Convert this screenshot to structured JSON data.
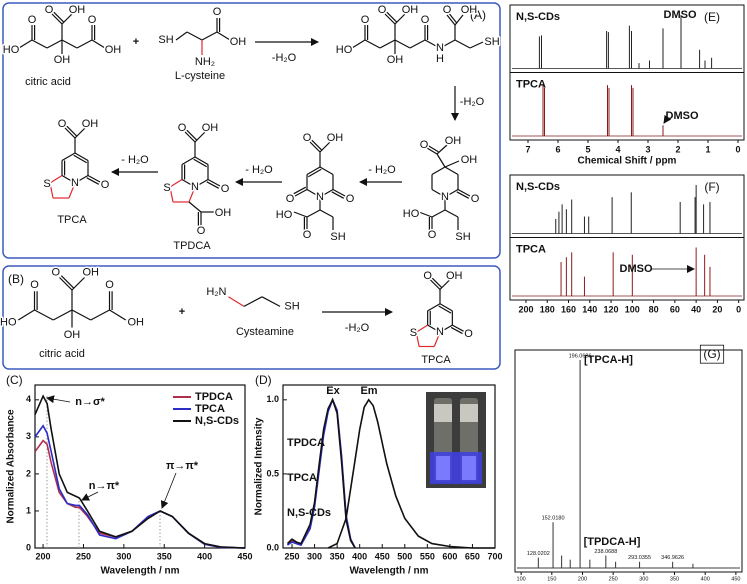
{
  "scheme_a": {
    "label": "(A)",
    "plus": "+",
    "names": [
      "citric acid",
      "L-cysteine",
      "TPDCA",
      "TPCA"
    ],
    "conditions": [
      "-H₂O",
      "-H₂O",
      "- H₂O",
      "- H₂O",
      "- H₂O"
    ],
    "molecules": [
      {
        "atoms": [
          "O",
          "OH",
          "O",
          "HO",
          "O",
          "OH",
          "OH"
        ]
      },
      {
        "atoms": [
          "SH",
          "NH₂",
          "O",
          "OH"
        ]
      },
      {
        "atoms": [
          "O",
          "OH",
          "O",
          "HO",
          "O",
          "OH",
          "N",
          "H",
          "O",
          "OH",
          "SH"
        ]
      },
      {
        "atoms": [
          "O",
          "OH",
          "OH",
          "O",
          "N",
          "HO",
          "O",
          "SH"
        ]
      },
      {
        "atoms": [
          "O",
          "OH",
          "O",
          "O",
          "N",
          "HO",
          "O",
          "SH"
        ]
      },
      {
        "atoms": [
          "O",
          "OH",
          "O",
          "N",
          "S",
          "O",
          "OH"
        ]
      },
      {
        "atoms": [
          "O",
          "OH",
          "O",
          "N",
          "S"
        ]
      }
    ]
  },
  "scheme_b": {
    "label": "(B)",
    "plus": "+",
    "names": [
      "citric acid",
      "Cysteamine",
      "TPCA"
    ],
    "conditions": [
      "-H₂O"
    ],
    "molecules": [
      {
        "atoms": [
          "O",
          "OH",
          "O",
          "HO",
          "O",
          "OH",
          "OH"
        ]
      },
      {
        "atoms": [
          "H₂N",
          "SH"
        ]
      },
      {
        "atoms": [
          "O",
          "OH",
          "O",
          "N",
          "S"
        ]
      }
    ]
  },
  "chart_data": [
    {
      "type": "line",
      "panel": "(C)",
      "xlabel": "Wavelength / nm",
      "ylabel": "Normalized Absorbance",
      "x": [
        190,
        200,
        205,
        210,
        220,
        230,
        240,
        245,
        255,
        270,
        290,
        310,
        330,
        345,
        360,
        380,
        400,
        420,
        450
      ],
      "xlim": [
        190,
        450
      ],
      "xticks": [
        200,
        250,
        300,
        350,
        400,
        450
      ],
      "ylim": [
        0,
        4.4
      ],
      "yticks": [
        0,
        1,
        2,
        3,
        4
      ],
      "legend": "upper right",
      "series": [
        {
          "name": "TPDCA",
          "color": "#b0304a",
          "values": [
            2.6,
            2.9,
            2.8,
            2.3,
            1.5,
            1.2,
            1.1,
            1.1,
            0.85,
            0.4,
            0.3,
            0.45,
            0.85,
            1.0,
            0.85,
            0.4,
            0.1,
            0.02,
            0
          ]
        },
        {
          "name": "TPCA",
          "color": "#2c2cc8",
          "values": [
            3.0,
            3.3,
            3.1,
            2.6,
            1.6,
            1.2,
            1.15,
            1.15,
            0.9,
            0.35,
            0.25,
            0.45,
            0.85,
            1.0,
            0.85,
            0.4,
            0.1,
            0.02,
            0
          ]
        },
        {
          "name": "N,S-CDs",
          "color": "#111111",
          "values": [
            3.6,
            4.1,
            3.9,
            3.2,
            2.0,
            1.5,
            1.4,
            1.35,
            1.0,
            0.45,
            0.3,
            0.45,
            0.8,
            1.0,
            0.85,
            0.4,
            0.12,
            0.03,
            0
          ]
        }
      ],
      "annotations": [
        "n→σ*",
        "n→π*",
        "π→π*"
      ]
    },
    {
      "type": "line",
      "panel": "(D)",
      "xlabel": "Wavelength / nm",
      "ylabel": "Normalized Intensity",
      "xlim": [
        230,
        700
      ],
      "xticks": [
        250,
        300,
        350,
        400,
        450,
        500,
        550,
        600,
        650,
        700
      ],
      "ylim": [
        0,
        1.1
      ],
      "yticks": [
        {
          "value": 0,
          "label": "0.0"
        },
        {
          "value": 0.5,
          "label": "0.5"
        },
        {
          "value": 1,
          "label": "1.0"
        }
      ],
      "legend": "left",
      "series": [
        {
          "name": "TPDCA",
          "color": "#b0304a",
          "x": [
            240,
            250,
            260,
            270,
            290,
            300,
            310,
            320,
            330,
            340,
            350,
            360,
            370,
            380,
            390
          ],
          "values": [
            0.02,
            0.05,
            0.03,
            0.02,
            0.15,
            0.3,
            0.55,
            0.78,
            0.93,
            1.0,
            0.92,
            0.6,
            0.2,
            0.05,
            0
          ]
        },
        {
          "name": "TPCA",
          "color": "#2c2cc8",
          "x": [
            240,
            250,
            260,
            270,
            290,
            300,
            310,
            320,
            330,
            340,
            350,
            360,
            370,
            380,
            390
          ],
          "values": [
            0.02,
            0.04,
            0.03,
            0.02,
            0.13,
            0.28,
            0.52,
            0.76,
            0.92,
            1.0,
            0.93,
            0.62,
            0.22,
            0.06,
            0
          ]
        },
        {
          "name": "N,S-CDs",
          "color": "#111111",
          "x": [
            240,
            250,
            260,
            270,
            290,
            300,
            310,
            320,
            330,
            340,
            350,
            360,
            370,
            380,
            390
          ],
          "values": [
            0.03,
            0.06,
            0.04,
            0.03,
            0.16,
            0.31,
            0.56,
            0.8,
            0.94,
            1.0,
            0.91,
            0.58,
            0.19,
            0.05,
            0
          ]
        },
        {
          "color": "#111111",
          "x": [
            330,
            350,
            370,
            390,
            400,
            410,
            420,
            430,
            440,
            460,
            480,
            500,
            530,
            560,
            600,
            650,
            700
          ],
          "values": [
            0,
            0.03,
            0.2,
            0.6,
            0.8,
            0.95,
            1.0,
            0.96,
            0.85,
            0.57,
            0.35,
            0.2,
            0.08,
            0.03,
            0.01,
            0,
            0
          ]
        }
      ],
      "annotations": [
        "Ex",
        "Em"
      ]
    },
    {
      "type": "stick",
      "panel": "(E)",
      "xlabel": "Chemical Shift / ppm",
      "stacked": true,
      "xlim": [
        7.6,
        -0.2
      ],
      "xticks": [
        7,
        6,
        5,
        4,
        3,
        2,
        1,
        0
      ],
      "series": [
        {
          "name": "N,S-CDs",
          "color": "#222222",
          "x": [
            6.62,
            6.55,
            4.38,
            4.32,
            3.62,
            3.55,
            2.5,
            1.9,
            1.28,
            1.1,
            0.88,
            3.3,
            2.95
          ],
          "values": [
            0.6,
            0.62,
            0.7,
            0.68,
            0.8,
            0.7,
            0.75,
            1.0,
            0.35,
            0.15,
            0.2,
            0.1,
            0.15
          ]
        },
        {
          "name": "TPCA",
          "color": "#8b1a1a",
          "x": [
            6.5,
            6.45,
            4.35,
            4.3,
            3.55,
            3.5,
            2.5
          ],
          "values": [
            0.95,
            0.9,
            0.95,
            0.9,
            0.95,
            0.9,
            0.2
          ]
        }
      ],
      "annotations": [
        "DMSO",
        "DMSO"
      ]
    },
    {
      "type": "stick",
      "panel": "(F)",
      "stacked": true,
      "xlim": [
        215,
        -5
      ],
      "xticks": [
        200,
        180,
        160,
        140,
        120,
        100,
        80,
        60,
        40,
        20,
        0
      ],
      "series": [
        {
          "name": "N,S-CDs",
          "color": "#222222",
          "x": [
            172,
            169,
            166,
            162,
            157,
            145,
            141,
            119,
            101,
            55,
            41,
            40,
            33,
            27
          ],
          "values": [
            0.3,
            0.45,
            0.6,
            0.5,
            0.7,
            0.35,
            0.35,
            0.75,
            0.85,
            0.65,
            0.75,
            1.0,
            0.6,
            0.65
          ]
        },
        {
          "name": "TPCA",
          "color": "#8b1a1a",
          "x": [
            167,
            162,
            157,
            145,
            118,
            100,
            40,
            32,
            27
          ],
          "values": [
            0.7,
            0.8,
            0.9,
            0.4,
            0.9,
            0.85,
            1.0,
            0.85,
            0.6
          ]
        }
      ],
      "annotations": [
        "DMSO"
      ]
    },
    {
      "type": "stick",
      "panel": "(G)",
      "stacked": false,
      "xlim": [
        90,
        460
      ],
      "xticks": [
        100,
        150,
        200,
        250,
        300,
        350,
        400,
        450
      ],
      "series": [
        {
          "color": "#333333",
          "peak_labels": true,
          "x": [
            128.0202,
            152.018,
            196.0686,
            238.0688,
            293.0355,
            346.9626
          ],
          "x_labels": [
            "128.0202",
            "152.0180",
            "196.0686",
            "238.0688",
            "293.0355",
            "346.9626"
          ],
          "values": [
            0.05,
            0.22,
            1.0,
            0.06,
            0.03,
            0.03
          ]
        },
        {
          "color": "#333333",
          "x": [
            166,
            180,
            212,
            254,
            380
          ],
          "values": [
            0.06,
            0.04,
            0.04,
            0.03,
            0.02
          ]
        }
      ],
      "annotations": [
        "[TPCA-H]",
        "[TPDCA-H]"
      ]
    }
  ]
}
